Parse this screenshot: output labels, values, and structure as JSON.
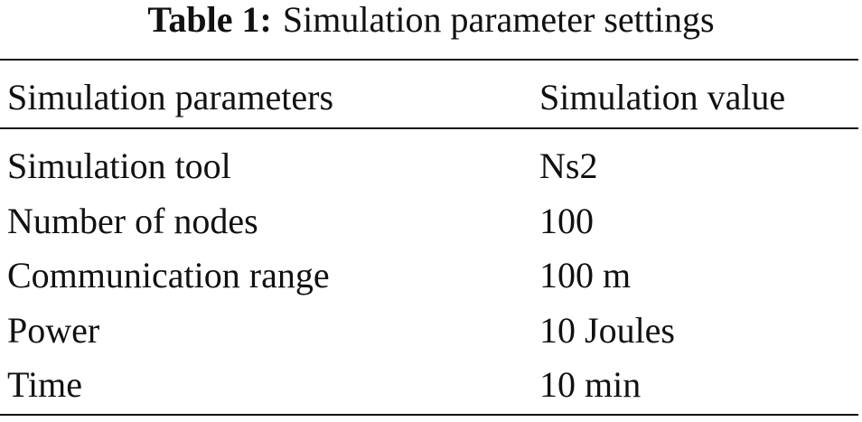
{
  "caption": {
    "label": "Table 1:",
    "text": "Simulation parameter settings"
  },
  "table": {
    "header": [
      "Simulation parameters",
      "Simulation value"
    ],
    "rows": [
      [
        "Simulation tool",
        "Ns2"
      ],
      [
        "Number of nodes",
        "100"
      ],
      [
        "Communication range",
        "100 m"
      ],
      [
        "Power",
        "10 Joules"
      ],
      [
        "Time",
        "10 min"
      ]
    ]
  }
}
